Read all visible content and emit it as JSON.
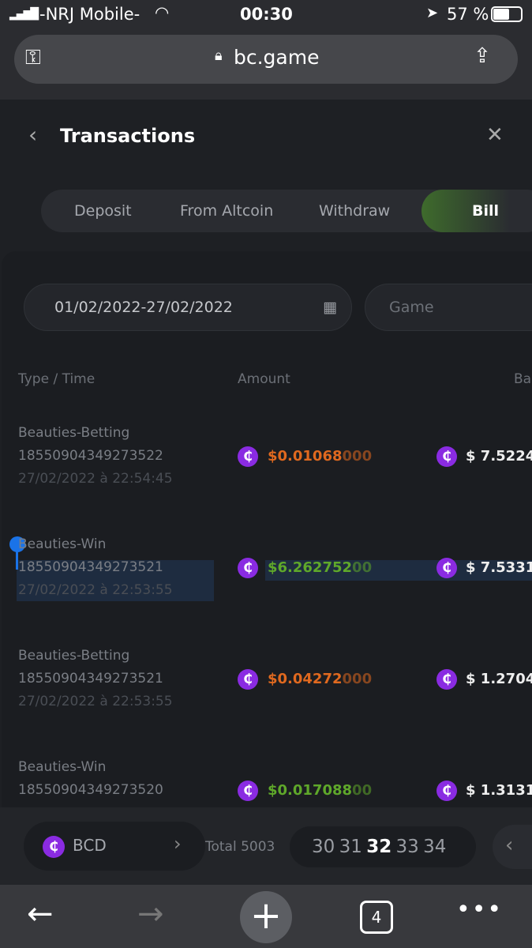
{
  "status_bar": {
    "carrier": "-NRJ Mobile-",
    "time": "00:30",
    "battery": "57 %"
  },
  "browser": {
    "url": "bc.game",
    "tab_count": "4"
  },
  "header": {
    "title": "Transactions"
  },
  "tabs": [
    {
      "label": "Deposit"
    },
    {
      "label": "From Altcoin"
    },
    {
      "label": "Withdraw"
    },
    {
      "label": "Bill",
      "active": true
    }
  ],
  "filters": {
    "date_range": "01/02/2022-27/02/2022",
    "type_placeholder": "Game"
  },
  "columns": {
    "type_time": "Type / Time",
    "amount": "Amount",
    "balance": "Ba"
  },
  "rows": [
    {
      "type": "Beauties-Betting",
      "id": "18550904349273522",
      "time": "27/02/2022 à 22:54:45",
      "amount_main": "$0.01068",
      "amount_tail": "000",
      "amount_color": "#e0691f",
      "balance": "$ 7.5224"
    },
    {
      "type": "Beauties-Win",
      "id": "18550904349273521",
      "time": "27/02/2022 à 22:53:55",
      "amount_main": "$6.262752",
      "amount_tail": "00",
      "amount_color": "#5fa82a",
      "balance": "$ 7.5331"
    },
    {
      "type": "Beauties-Betting",
      "id": "18550904349273521",
      "time": "27/02/2022 à 22:53:55",
      "amount_main": "$0.04272",
      "amount_tail": "000",
      "amount_color": "#e0691f",
      "balance": "$ 1.2704"
    },
    {
      "type": "Beauties-Win",
      "id": "18550904349273520",
      "time": "",
      "amount_main": "$0.017088",
      "amount_tail": "00",
      "amount_color": "#5fa82a",
      "balance": "$ 1.3131"
    }
  ],
  "footer": {
    "currency": "BCD",
    "total": "Total 5003",
    "pages": [
      "30",
      "31",
      "32",
      "33",
      "34"
    ],
    "current_page": "32"
  },
  "colors": {
    "coin": "#8a2be2",
    "accent_green": "#3e6b2c"
  }
}
